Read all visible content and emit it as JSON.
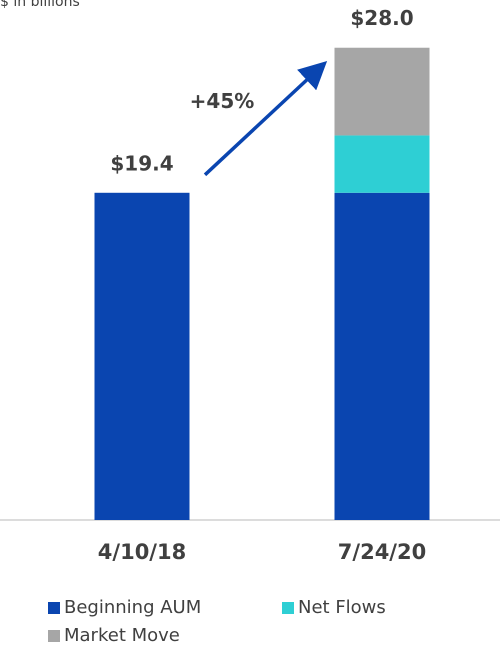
{
  "chart_data": {
    "type": "stacked_bar",
    "subtitle": "$ in billions",
    "categories": [
      "4/10/18",
      "7/24/20"
    ],
    "series": [
      {
        "name": "Beginning AUM",
        "color": "#0a45b0",
        "values": [
          19.4,
          19.4
        ]
      },
      {
        "name": "Net Flows",
        "color": "#2ecfd4",
        "values": [
          null,
          3.4
        ]
      },
      {
        "name": "Market Move",
        "color": "#a6a6a6",
        "values": [
          null,
          5.2
        ]
      }
    ],
    "totals": {
      "values": [
        19.4,
        28.0
      ],
      "value_labels": [
        "$19.4",
        "$28.0"
      ]
    },
    "annotation": "+45%",
    "arrow_color": "#0a45b0",
    "ylim": [
      0,
      30
    ]
  }
}
